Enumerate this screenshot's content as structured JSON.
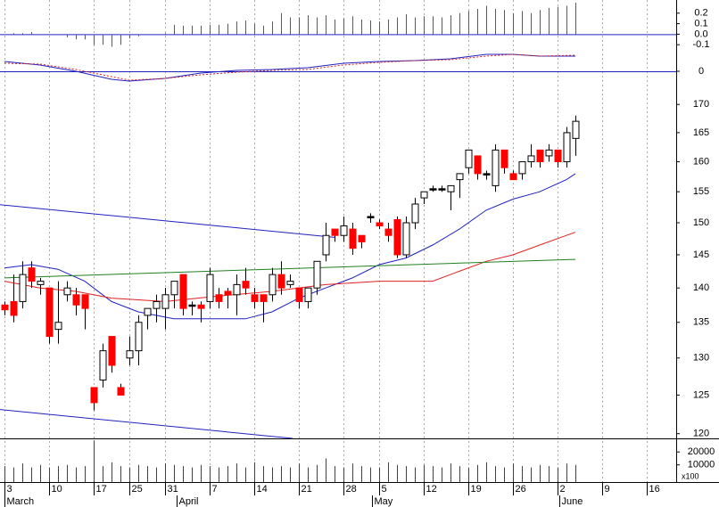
{
  "chart_data": {
    "type": "candlestick",
    "log_scale": true,
    "xlim": [
      -0.5,
      75.3
    ],
    "xticks": [
      {
        "value": 0,
        "label": "3"
      },
      {
        "value": 5,
        "label": "10"
      },
      {
        "value": 10,
        "label": "17"
      },
      {
        "value": 14,
        "label": "25"
      },
      {
        "value": 18,
        "label": "31"
      },
      {
        "value": 23,
        "label": "7"
      },
      {
        "value": 28,
        "label": "14"
      },
      {
        "value": 33,
        "label": "21"
      },
      {
        "value": 38,
        "label": "28"
      },
      {
        "value": 42,
        "label": "5"
      },
      {
        "value": 47,
        "label": "12"
      },
      {
        "value": 52,
        "label": "19"
      },
      {
        "value": 57,
        "label": "26"
      },
      {
        "value": 62,
        "label": "2"
      },
      {
        "value": 67,
        "label": "9"
      },
      {
        "value": 72,
        "label": "16"
      }
    ],
    "month_ticks": [
      {
        "value": 0,
        "label": "March"
      },
      {
        "value": 19.3,
        "label": "April"
      },
      {
        "value": 41.2,
        "label": "May"
      },
      {
        "value": 62.2,
        "label": "June"
      }
    ],
    "ylim": [
      119.4,
      173.6
    ],
    "yticks": [
      170,
      165,
      160,
      155,
      150,
      145,
      140,
      135,
      130,
      125,
      120
    ],
    "up_color": "#ffffff",
    "down_color": "#ff0000",
    "doji_color": "#000000",
    "open": [
      137.5,
      138,
      138,
      143,
      140.5,
      140,
      134,
      139,
      139,
      139,
      126,
      127,
      133,
      126,
      130,
      131,
      136,
      137,
      137,
      139,
      142,
      137.5,
      137.5,
      138,
      139,
      139.5,
      139,
      141,
      139,
      139,
      139,
      142,
      140.5,
      140,
      138,
      140,
      145,
      149,
      148,
      149,
      148,
      151,
      150,
      149,
      150.5,
      145,
      150,
      154,
      155.5,
      155.5,
      155,
      157,
      159,
      161,
      158,
      156,
      162,
      158,
      158,
      160,
      162,
      161,
      162,
      160,
      164
    ],
    "high": [
      138,
      142,
      144,
      144,
      141.5,
      140,
      141,
      141,
      140,
      139,
      126,
      132,
      133,
      126.5,
      133,
      136,
      137,
      139,
      140,
      141,
      142,
      138,
      138,
      143,
      140,
      140,
      142,
      143,
      140,
      139,
      143,
      144,
      142,
      140,
      140,
      144,
      150,
      149,
      151,
      150,
      148,
      151.5,
      150.5,
      150,
      151,
      151,
      154,
      155,
      156,
      156,
      156,
      158,
      162,
      161,
      158.5,
      163,
      162,
      158.5,
      160,
      163,
      162,
      163,
      162,
      166,
      168
    ],
    "low": [
      136,
      135,
      137,
      140,
      139,
      132,
      132,
      138,
      136,
      134,
      123,
      126,
      128,
      125,
      129,
      129,
      134,
      135,
      134,
      137,
      136,
      136,
      135,
      137,
      137,
      137,
      136,
      139,
      137,
      135,
      138,
      139,
      140,
      137,
      137,
      139,
      144,
      147,
      147,
      145,
      146,
      150,
      149,
      147,
      144.5,
      144.5,
      149,
      153,
      155,
      155,
      152,
      154,
      158,
      157,
      157,
      155,
      158,
      157,
      157,
      159,
      159,
      160,
      159,
      159,
      161
    ],
    "close": [
      136.8,
      136,
      142,
      141,
      141,
      133,
      135,
      140,
      137.5,
      137,
      124,
      131,
      129,
      125,
      131,
      135,
      137,
      138,
      139,
      141,
      137,
      137.5,
      137,
      142,
      138,
      139,
      140.5,
      140,
      138,
      138,
      142,
      140,
      141,
      138,
      140,
      144,
      148,
      148,
      149.5,
      146,
      147,
      151,
      149.5,
      148,
      145,
      150,
      153,
      155,
      155.5,
      155.5,
      156,
      158,
      162,
      158,
      158,
      162,
      159,
      157,
      160,
      161,
      160,
      162,
      160,
      165,
      167
    ],
    "overlays": [
      {
        "color": "#2020c0",
        "x": [
          0,
          3,
          6,
          9,
          12,
          15,
          19,
          23,
          27,
          30,
          33,
          36,
          39,
          42,
          45,
          48,
          51,
          54,
          57,
          60,
          63,
          64
        ],
        "values": [
          143,
          143.5,
          142.8,
          141,
          138,
          136.5,
          135.5,
          135.5,
          135.5,
          136.5,
          138.5,
          140,
          141.5,
          143.5,
          144.5,
          146.5,
          149,
          152,
          153.8,
          155,
          157,
          158
        ]
      },
      {
        "color": "#e02020",
        "x": [
          0,
          4,
          8,
          12,
          18,
          24,
          30,
          36,
          42,
          48,
          51,
          54,
          57,
          60,
          63,
          64
        ],
        "values": [
          141,
          140,
          139.5,
          138.5,
          138,
          138.8,
          139.5,
          140.5,
          141,
          141,
          142.5,
          144,
          145,
          146.5,
          148,
          148.5
        ]
      },
      {
        "color": "#208020",
        "x": [
          0,
          64
        ],
        "values": [
          141.5,
          144.3
        ]
      },
      {
        "color": "#2020c0",
        "x": [
          -0.5,
          37
        ],
        "values": [
          152.9,
          147.7
        ]
      },
      {
        "color": "#2020c0",
        "x": [
          -0.5,
          32.3
        ],
        "values": [
          123.1,
          119.4
        ]
      }
    ],
    "macd_histogram": {
      "color": "#e02020",
      "ylim": [
        -0.2,
        0.325
      ],
      "yticks": [
        0.2,
        0.1,
        {
          "value": 0,
          "label": "0.0"
        },
        -0.1
      ],
      "values": [
        0,
        0.01,
        0.01,
        0.02,
        0,
        0,
        -0.01,
        -0.03,
        -0.05,
        -0.05,
        -0.1,
        -0.1,
        -0.12,
        -0.1,
        -0.04,
        -0.02,
        -0.01,
        0,
        0.01,
        0.09,
        0.08,
        0.08,
        0.08,
        0.09,
        0.09,
        0.1,
        0.12,
        0.13,
        0.1,
        0.08,
        0.12,
        0.2,
        0.16,
        0.16,
        0.18,
        0.16,
        0.18,
        0.14,
        0.15,
        0.17,
        0.14,
        0.13,
        0.12,
        0.14,
        0.16,
        0.19,
        0.16,
        0.17,
        0.17,
        0.16,
        0.18,
        0.2,
        0.22,
        0.24,
        0.27,
        0.24,
        0.23,
        0.2,
        0.22,
        0.2,
        0.23,
        0.25,
        0.26,
        0.27,
        0.3
      ]
    },
    "macd_lines": {
      "ylim": [
        -0.75,
        1.25
      ],
      "yticks": [
        0
      ],
      "series": [
        {
          "color": "#2020c0",
          "dashed": false,
          "x": [
            0,
            4,
            8,
            12,
            14,
            18,
            22,
            26,
            30,
            34,
            38,
            42,
            46,
            50,
            54,
            57,
            60,
            64
          ],
          "values": [
            0.55,
            0.35,
            0,
            -0.45,
            -0.55,
            -0.4,
            -0.1,
            0.05,
            0.1,
            0.2,
            0.45,
            0.55,
            0.6,
            0.7,
            0.95,
            0.95,
            0.85,
            0.85
          ]
        },
        {
          "color": "#e02020",
          "dashed": true,
          "x": [
            0,
            4,
            8,
            12,
            14,
            18,
            22,
            26,
            30,
            34,
            38,
            42,
            46,
            50,
            54,
            57,
            60,
            64
          ],
          "values": [
            0.45,
            0.4,
            0.1,
            -0.3,
            -0.5,
            -0.4,
            -0.2,
            -0.05,
            0.05,
            0.1,
            0.35,
            0.5,
            0.6,
            0.65,
            0.85,
            0.95,
            0.85,
            0.9
          ]
        }
      ]
    },
    "volume": {
      "color": "#3030c0",
      "unit_label": "x100",
      "ylim": [
        -3300,
        30500
      ],
      "yticks": [
        20000,
        10000
      ],
      "values": [
        9000,
        8000,
        11000,
        8000,
        10000,
        8000,
        9000,
        10000,
        8000,
        9000,
        29000,
        9000,
        12000,
        9000,
        8000,
        10000,
        9000,
        8000,
        11000,
        10000,
        9000,
        8000,
        10000,
        9000,
        8000,
        9000,
        11000,
        8000,
        12000,
        9000,
        8000,
        9000,
        8000,
        11000,
        8000,
        10000,
        15000,
        9000,
        8000,
        11000,
        9000,
        8000,
        8000,
        12000,
        10000,
        9000,
        8000,
        10000,
        9000,
        8000,
        11000,
        9000,
        8000,
        10000,
        12000,
        9000,
        8000,
        11000,
        9000,
        8000,
        10000,
        9000,
        8000,
        11000,
        10000
      ]
    }
  }
}
